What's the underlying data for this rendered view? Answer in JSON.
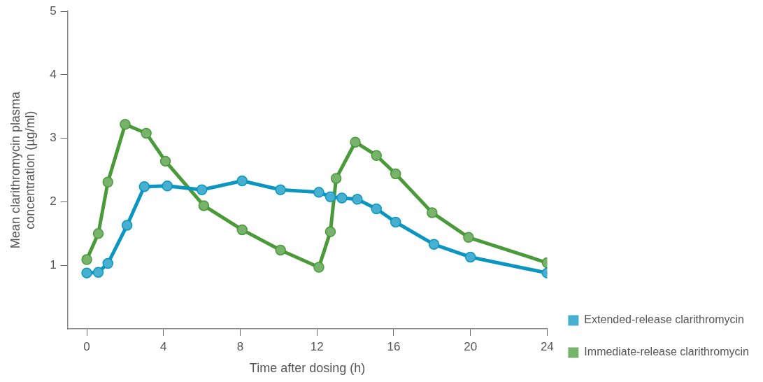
{
  "chart_data": {
    "type": "line",
    "xlabel": "Time after dosing (h)",
    "ylabel": "Mean clarithromycin plasma concentration (µg/ml)",
    "xlim": [
      -1,
      24
    ],
    "xticks": [
      0,
      4,
      8,
      12,
      16,
      20,
      24
    ],
    "ylim": [
      0,
      5
    ],
    "yticks": [
      1,
      2,
      3,
      4,
      5
    ],
    "grid": false,
    "legend": "right",
    "marker": "circle",
    "line_style": "solid",
    "series": [
      {
        "name": "Extended-release clarithromycin",
        "color": "#0a96c0",
        "x": [
          0,
          0.6,
          1.1,
          2.1,
          3,
          4.2,
          6,
          8.1,
          10.1,
          12.1,
          12.7,
          13.3,
          14.1,
          15.1,
          16.1,
          18.1,
          20,
          24
        ],
        "values": [
          0.88,
          0.89,
          1.03,
          1.63,
          2.24,
          2.25,
          2.19,
          2.33,
          2.19,
          2.15,
          2.08,
          2.06,
          2.04,
          1.89,
          1.68,
          1.33,
          1.13,
          0.88
        ]
      },
      {
        "name": "Immediate-release clarithromycin",
        "color": "#4a9a3a",
        "x": [
          0,
          0.6,
          1.1,
          2,
          3.1,
          4.1,
          6.1,
          8.1,
          10.1,
          12.1,
          12.7,
          13,
          14,
          15.1,
          16.1,
          18,
          19.9,
          24
        ],
        "values": [
          1.09,
          1.5,
          2.31,
          3.22,
          3.08,
          2.64,
          1.94,
          1.56,
          1.24,
          0.97,
          1.53,
          2.37,
          2.94,
          2.73,
          2.44,
          1.83,
          1.44,
          1.04
        ]
      }
    ]
  }
}
